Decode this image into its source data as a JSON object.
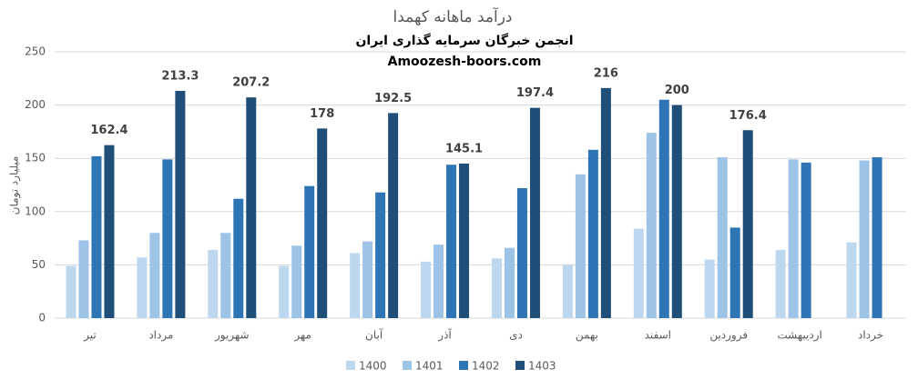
{
  "chart_data": {
    "type": "bar",
    "title": "درآمد ماهانه کهمدا",
    "subtitle": "انجمن خبرگان سرمایه گذاری ایران",
    "annotation": "Amoozesh-boors.com",
    "y_label": "میلیارد تومان",
    "categories": [
      "تیر",
      "مرداد",
      "شهریور",
      "مهر",
      "آبان",
      "آذر",
      "دی",
      "بهمن",
      "اسفند",
      "فروردین",
      "اردیبهشت",
      "خرداد"
    ],
    "series": [
      {
        "name": "1400",
        "color": "#bdd7ee",
        "values": [
          49,
          57,
          64,
          49,
          61,
          53,
          56,
          50,
          84,
          55,
          64,
          71
        ]
      },
      {
        "name": "1401",
        "color": "#9dc3e6",
        "values": [
          73,
          80,
          80,
          68,
          72,
          69,
          66,
          135,
          174,
          151,
          149,
          148
        ]
      },
      {
        "name": "1402",
        "color": "#2e75b6",
        "values": [
          152,
          149,
          112,
          124,
          118,
          144,
          122,
          158,
          205,
          85,
          146,
          151
        ]
      },
      {
        "name": "1403",
        "color": "#1f4e79",
        "values": [
          162.4,
          213.3,
          207.2,
          178,
          192.5,
          145.1,
          197.4,
          216,
          200,
          176.4,
          null,
          null
        ]
      }
    ],
    "data_labels_series": 3,
    "ylim": [
      0,
      250
    ],
    "yticks": [
      0,
      50,
      100,
      150,
      200,
      250
    ],
    "grid": true,
    "legend": "bottom"
  }
}
